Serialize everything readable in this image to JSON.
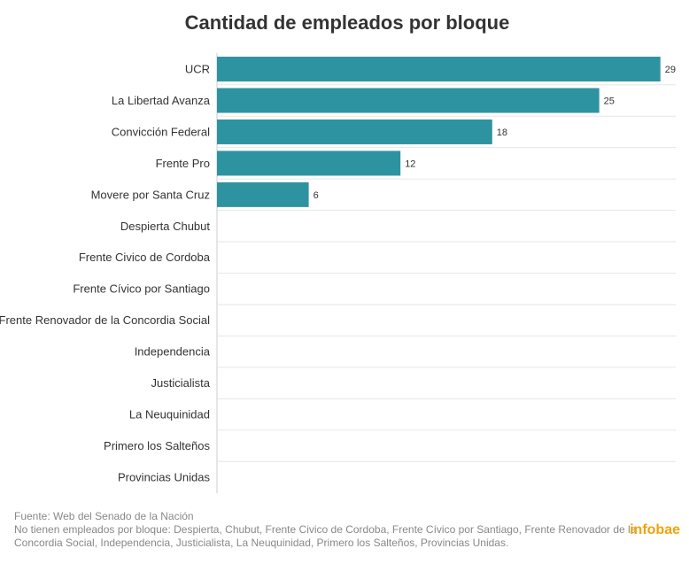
{
  "chart_data": {
    "type": "hbar",
    "title": "Cantidad de empleados por bloque",
    "categories": [
      "UCR",
      "La Libertad Avanza",
      "Convicción Federal",
      "Frente Pro",
      "Movere por Santa Cruz",
      "Despierta Chubut",
      "Frente Civico de Cordoba",
      "Frente Cívico por Santiago",
      "Frente Renovador de la Concordia Social",
      "Independencia",
      "Justicialista",
      "La Neuquinidad",
      "Primero los Salteños",
      "Provincias Unidas"
    ],
    "values": [
      29,
      25,
      18,
      12,
      6,
      0,
      0,
      0,
      0,
      0,
      0,
      0,
      0,
      0
    ],
    "color": "#2e93a0",
    "xlim": [
      0,
      30
    ],
    "source": "Fuente: Web del Senado de la Nación",
    "note": [
      "No tienen empleados por bloque: Despierta, Chubut, Frente Civico de Cordoba, Frente Cívico por Santiago, Frente Renovador de la",
      "Concordia Social, Independencia, Justicialista, La Neuquinidad, Primero los Salteños, Provincias Unidas."
    ],
    "logo": "infobae"
  }
}
